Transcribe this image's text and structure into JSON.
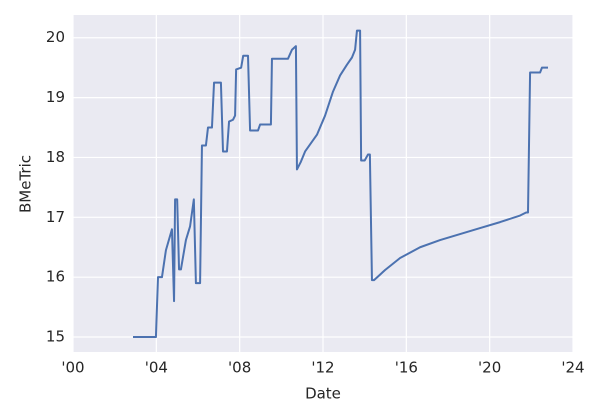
{
  "chart_data": {
    "type": "line",
    "xlabel": "Date",
    "ylabel": "BMeTric",
    "color": "#4c72b0",
    "grid": true,
    "x": [
      2002.88,
      2003.98,
      2004.08,
      2004.27,
      2004.46,
      2004.75,
      2004.85,
      2004.9,
      2005.0,
      2005.09,
      2005.18,
      2005.42,
      2005.62,
      2005.8,
      2005.9,
      2006.1,
      2006.19,
      2006.38,
      2006.48,
      2006.67,
      2006.77,
      2007.1,
      2007.2,
      2007.39,
      2007.49,
      2007.68,
      2007.78,
      2007.83,
      2008.07,
      2008.17,
      2008.4,
      2008.5,
      2008.88,
      2008.98,
      2009.5,
      2009.55,
      2010.32,
      2010.51,
      2010.7,
      2010.75,
      2010.94,
      2011.14,
      2011.71,
      2012.1,
      2012.48,
      2012.82,
      2013.15,
      2013.39,
      2013.54,
      2013.63,
      2013.78,
      2013.83,
      2014.0,
      2014.16,
      2014.25,
      2014.35,
      2014.45,
      2014.98,
      2015.7,
      2016.66,
      2017.62,
      2018.58,
      2019.54,
      2020.5,
      2021.46,
      2021.75,
      2021.84,
      2021.94,
      2022.42,
      2022.51,
      2022.8
    ],
    "values": [
      15.0,
      15.0,
      16.0,
      16.0,
      16.45,
      16.8,
      15.6,
      17.3,
      17.3,
      16.13,
      16.13,
      16.62,
      16.85,
      17.3,
      15.9,
      15.9,
      18.2,
      18.2,
      18.5,
      18.5,
      19.25,
      19.25,
      18.1,
      18.1,
      18.6,
      18.63,
      18.7,
      19.47,
      19.5,
      19.7,
      19.7,
      18.45,
      18.45,
      18.55,
      18.55,
      19.65,
      19.65,
      19.8,
      19.86,
      17.8,
      17.93,
      18.1,
      18.38,
      18.7,
      19.1,
      19.37,
      19.55,
      19.67,
      19.8,
      20.12,
      20.12,
      17.95,
      17.95,
      18.05,
      18.05,
      15.95,
      15.95,
      16.12,
      16.32,
      16.5,
      16.62,
      16.72,
      16.82,
      16.92,
      17.03,
      17.08,
      17.08,
      19.42,
      19.42,
      19.5,
      19.5
    ],
    "xlim": [
      2000,
      2024
    ],
    "xticks": [
      {
        "value": 2000,
        "label": "'00"
      },
      {
        "value": 2004,
        "label": "'04"
      },
      {
        "value": 2008,
        "label": "'08"
      },
      {
        "value": 2012,
        "label": "'12"
      },
      {
        "value": 2016,
        "label": "'16"
      },
      {
        "value": 2020,
        "label": "'20"
      },
      {
        "value": 2024,
        "label": "'24"
      }
    ],
    "ylim": [
      14.75,
      20.38
    ],
    "yticks": [
      15,
      16,
      17,
      18,
      19,
      20
    ]
  }
}
